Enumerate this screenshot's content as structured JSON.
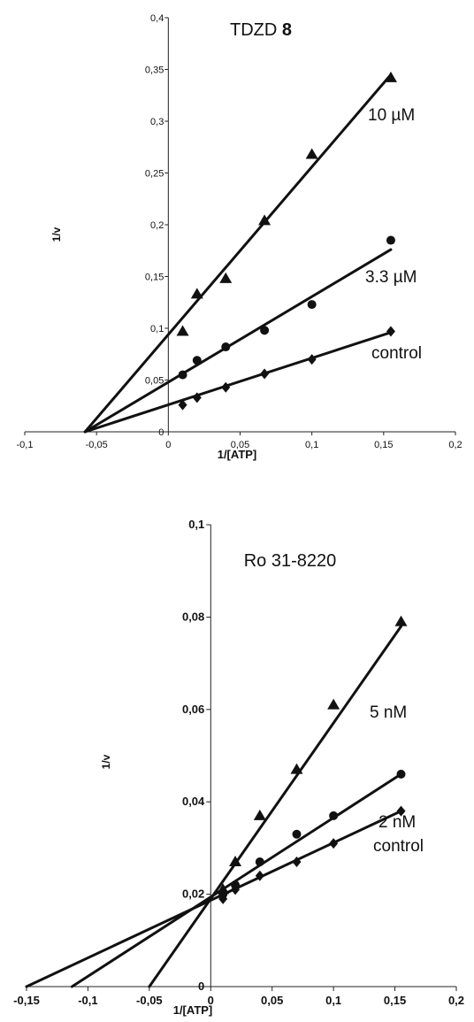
{
  "chart_data": [
    {
      "type": "line",
      "title": "TDZD",
      "title_bold": "8",
      "xlabel": "1/[ATP]",
      "ylabel": "1/v",
      "xlim": [
        -0.1,
        0.2
      ],
      "ylim": [
        0,
        0.4
      ],
      "x_ticks": [
        "-0,1",
        "-0,05",
        "0",
        "0,05",
        "0,1",
        "0,15",
        "0,2"
      ],
      "y_ticks": [
        "0",
        "0,05",
        "0,1",
        "0,15",
        "0,2",
        "0,25",
        "0,3",
        "0,35",
        "0,4"
      ],
      "series": [
        {
          "name": "10 µM",
          "marker": "triangle",
          "points": [
            [
              0.01,
              0.097
            ],
            [
              0.02,
              0.133
            ],
            [
              0.04,
              0.148
            ],
            [
              0.067,
              0.204
            ],
            [
              0.1,
              0.268
            ],
            [
              0.155,
              0.342
            ]
          ],
          "fit": [
            [
              -0.058,
              0
            ],
            [
              0.155,
              0.345
            ]
          ]
        },
        {
          "name": "3.3 µM",
          "marker": "circle",
          "points": [
            [
              0.01,
              0.055
            ],
            [
              0.02,
              0.069
            ],
            [
              0.04,
              0.082
            ],
            [
              0.067,
              0.098
            ],
            [
              0.1,
              0.123
            ],
            [
              0.155,
              0.185
            ]
          ],
          "fit": [
            [
              -0.058,
              0
            ],
            [
              0.155,
              0.176
            ]
          ]
        },
        {
          "name": "control",
          "marker": "diamond",
          "points": [
            [
              0.01,
              0.026
            ],
            [
              0.02,
              0.033
            ],
            [
              0.04,
              0.043
            ],
            [
              0.067,
              0.056
            ],
            [
              0.1,
              0.07
            ],
            [
              0.155,
              0.097
            ]
          ],
          "fit": [
            [
              -0.058,
              0
            ],
            [
              0.155,
              0.096
            ]
          ]
        }
      ]
    },
    {
      "type": "line",
      "title": "Ro 31-8220",
      "xlabel": "1/[ATP]",
      "ylabel": "1/v",
      "xlim": [
        -0.15,
        0.2
      ],
      "ylim": [
        0,
        0.1
      ],
      "x_ticks": [
        "-0,15",
        "-0,1",
        "-0,05",
        "0",
        "0,05",
        "0,1",
        "0,15",
        "0,2"
      ],
      "y_ticks": [
        "0",
        "0,02",
        "0,04",
        "0,06",
        "0,08",
        "0,1"
      ],
      "series": [
        {
          "name": "5 nM",
          "marker": "triangle",
          "points": [
            [
              0.01,
              0.021
            ],
            [
              0.02,
              0.027
            ],
            [
              0.04,
              0.037
            ],
            [
              0.07,
              0.047
            ],
            [
              0.1,
              0.061
            ],
            [
              0.155,
              0.079
            ]
          ],
          "fit": [
            [
              -0.05,
              0
            ],
            [
              0.155,
              0.078
            ]
          ]
        },
        {
          "name": "2 nM",
          "marker": "circle",
          "points": [
            [
              0.01,
              0.02
            ],
            [
              0.02,
              0.022
            ],
            [
              0.04,
              0.027
            ],
            [
              0.07,
              0.033
            ],
            [
              0.1,
              0.037
            ],
            [
              0.155,
              0.046
            ]
          ],
          "fit": [
            [
              -0.113,
              0
            ],
            [
              0.155,
              0.046
            ]
          ]
        },
        {
          "name": "control",
          "marker": "diamond",
          "points": [
            [
              0.01,
              0.019
            ],
            [
              0.02,
              0.021
            ],
            [
              0.04,
              0.024
            ],
            [
              0.07,
              0.027
            ],
            [
              0.1,
              0.031
            ],
            [
              0.155,
              0.038
            ]
          ],
          "fit": [
            [
              -0.15,
              0
            ],
            [
              0.155,
              0.038
            ]
          ]
        }
      ]
    }
  ]
}
